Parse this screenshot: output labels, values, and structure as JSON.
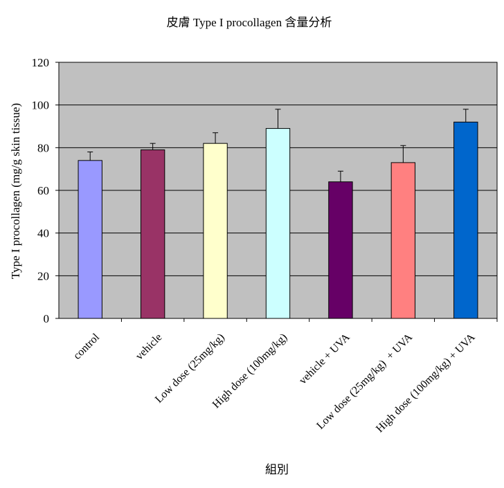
{
  "chart_data": {
    "type": "bar",
    "title": "皮膚 Type I procollagen 含量分析",
    "xlabel": "組別",
    "ylabel": "Type I procollagen (mg/g skin tissue)",
    "ylim": [
      0,
      120
    ],
    "yticks": [
      0,
      20,
      40,
      60,
      80,
      100,
      120
    ],
    "grid": true,
    "legend": "none",
    "plot_background": "#c0c0c0",
    "categories": [
      "control",
      "vehicle",
      "Low dose (25mg/kg)",
      "High dose (100mg/kg)",
      "vehicle + UVA",
      "Low dose (25mg/kg)  + UVA",
      "High dose (100mg/kg) + UVA"
    ],
    "values": [
      74,
      79,
      82,
      89,
      64,
      73,
      92
    ],
    "errors": [
      4,
      3,
      5,
      9,
      5,
      8,
      6
    ],
    "colors": [
      "#9999ff",
      "#993366",
      "#ffffcc",
      "#ccffff",
      "#660066",
      "#ff8080",
      "#0066cc"
    ]
  }
}
